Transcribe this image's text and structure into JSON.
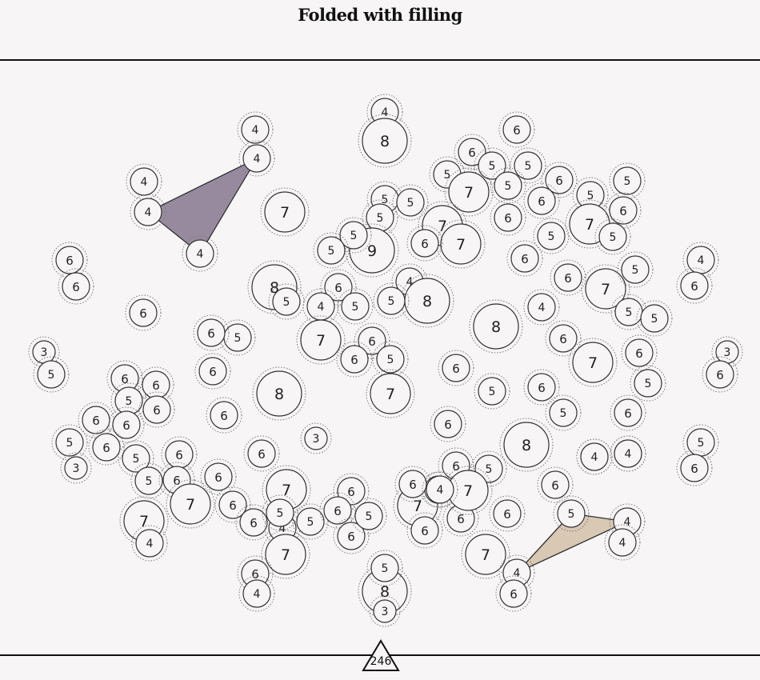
{
  "title": "Folded with filling",
  "counter": "246",
  "colors": {
    "background": "#f7f5f6",
    "shape_purple": "#978a9e",
    "shape_tan": "#d8c8b4",
    "stroke": "#333333"
  },
  "nodes": [
    {
      "n": "4"
    },
    {
      "n": "8"
    },
    {
      "n": "4"
    },
    {
      "n": "4"
    },
    {
      "n": "6"
    },
    {
      "n": "6"
    },
    {
      "n": "5"
    },
    {
      "n": "5"
    },
    {
      "n": "5"
    },
    {
      "n": "7"
    },
    {
      "n": "5"
    },
    {
      "n": "6"
    },
    {
      "n": "5"
    },
    {
      "n": "5"
    },
    {
      "n": "5"
    },
    {
      "n": "6"
    },
    {
      "n": "5"
    },
    {
      "n": "4"
    },
    {
      "n": "4"
    },
    {
      "n": "7"
    },
    {
      "n": "7"
    },
    {
      "n": "6"
    },
    {
      "n": "7"
    },
    {
      "n": "6"
    },
    {
      "n": "5"
    },
    {
      "n": "5"
    },
    {
      "n": "5"
    },
    {
      "n": "9"
    },
    {
      "n": "7"
    },
    {
      "n": "5"
    },
    {
      "n": "5"
    },
    {
      "n": "6"
    },
    {
      "n": "6"
    },
    {
      "n": "4"
    },
    {
      "n": "6"
    },
    {
      "n": "4"
    },
    {
      "n": "6"
    },
    {
      "n": "6"
    },
    {
      "n": "8"
    },
    {
      "n": "7"
    },
    {
      "n": "5"
    },
    {
      "n": "4"
    },
    {
      "n": "6"
    },
    {
      "n": "5"
    },
    {
      "n": "8"
    },
    {
      "n": "6"
    },
    {
      "n": "5"
    },
    {
      "n": "4"
    },
    {
      "n": "5"
    },
    {
      "n": "8"
    },
    {
      "n": "6"
    },
    {
      "n": "5"
    },
    {
      "n": "5"
    },
    {
      "n": "5"
    },
    {
      "n": "7"
    },
    {
      "n": "6"
    },
    {
      "n": "6"
    },
    {
      "n": "3"
    },
    {
      "n": "3"
    },
    {
      "n": "5"
    },
    {
      "n": "6"
    },
    {
      "n": "6"
    },
    {
      "n": "7"
    },
    {
      "n": "6"
    },
    {
      "n": "6"
    },
    {
      "n": "5"
    },
    {
      "n": "6"
    },
    {
      "n": "6"
    },
    {
      "n": "5"
    },
    {
      "n": "6"
    },
    {
      "n": "8"
    },
    {
      "n": "7"
    },
    {
      "n": "6"
    },
    {
      "n": "5"
    },
    {
      "n": "6"
    },
    {
      "n": "5"
    },
    {
      "n": "6"
    },
    {
      "n": "6"
    },
    {
      "n": "6"
    },
    {
      "n": "6"
    },
    {
      "n": "6"
    },
    {
      "n": "6"
    },
    {
      "n": "8"
    },
    {
      "n": "5"
    },
    {
      "n": "5"
    },
    {
      "n": "3"
    },
    {
      "n": "5"
    },
    {
      "n": "6"
    },
    {
      "n": "3"
    },
    {
      "n": "6"
    },
    {
      "n": "6"
    },
    {
      "n": "5"
    },
    {
      "n": "5"
    },
    {
      "n": "6"
    },
    {
      "n": "6"
    },
    {
      "n": "6"
    },
    {
      "n": "7"
    },
    {
      "n": "7"
    },
    {
      "n": "6"
    },
    {
      "n": "6"
    },
    {
      "n": "4"
    },
    {
      "n": "5"
    },
    {
      "n": "5"
    },
    {
      "n": "6"
    },
    {
      "n": "7"
    },
    {
      "n": "6"
    },
    {
      "n": "6"
    },
    {
      "n": "5"
    },
    {
      "n": "5"
    },
    {
      "n": "6"
    },
    {
      "n": "7"
    },
    {
      "n": "6"
    },
    {
      "n": "4"
    },
    {
      "n": "6"
    },
    {
      "n": "6"
    },
    {
      "n": "7"
    },
    {
      "n": "4"
    },
    {
      "n": "6"
    },
    {
      "n": "7"
    },
    {
      "n": "6"
    },
    {
      "n": "6"
    },
    {
      "n": "5"
    },
    {
      "n": "4"
    },
    {
      "n": "4"
    },
    {
      "n": "5"
    },
    {
      "n": "8"
    },
    {
      "n": "3"
    },
    {
      "n": "4"
    },
    {
      "n": "4"
    },
    {
      "n": "5"
    },
    {
      "n": "7"
    },
    {
      "n": "6"
    },
    {
      "n": "4"
    },
    {
      "n": "4"
    },
    {
      "n": "4"
    },
    {
      "n": "4"
    },
    {
      "n": "5"
    }
  ]
}
